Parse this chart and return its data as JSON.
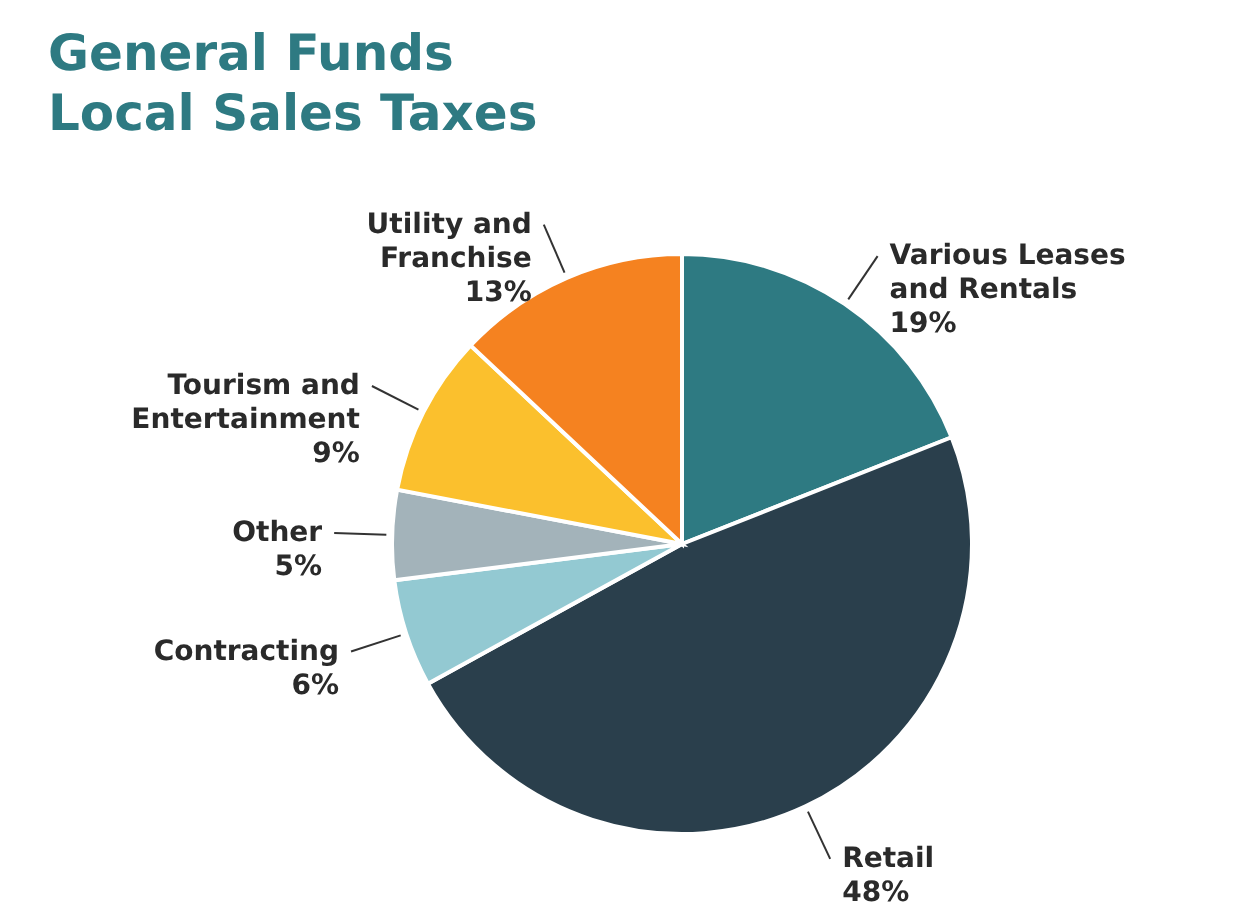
{
  "chart_data": {
    "type": "pie",
    "title": "General Funds\nLocal Sales Taxes",
    "categories": [
      "Various Leases\nand Rentals",
      "Retail",
      "Contracting",
      "Other",
      "Tourism and\nEntertainment",
      "Utility and\nFranchise"
    ],
    "values": [
      19,
      48,
      6,
      5,
      9,
      13
    ],
    "value_labels": [
      "19%",
      "48%",
      "6%",
      "5%",
      "9%",
      "13%"
    ],
    "colors": [
      "#2e7a82",
      "#2a3f4c",
      "#93c9d2",
      "#a3b3ba",
      "#fbc02d",
      "#f58220"
    ],
    "legend": false
  }
}
